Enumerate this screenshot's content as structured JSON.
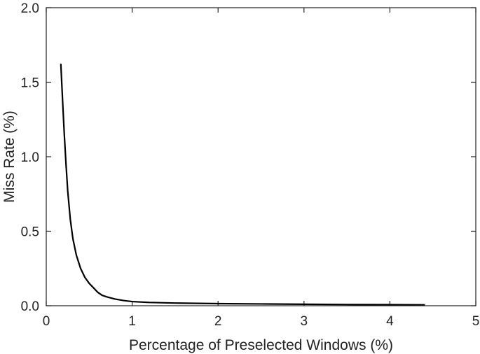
{
  "chart_data": {
    "type": "line",
    "title": "",
    "xlabel": "Percentage of Preselected Windows (%)",
    "ylabel": "Miss Rate (%)",
    "xlim": [
      0,
      5
    ],
    "ylim": [
      0,
      2.0
    ],
    "xticks": [
      0,
      1,
      2,
      3,
      4,
      5
    ],
    "xtick_labels": [
      "0",
      "1",
      "2",
      "3",
      "4",
      "5"
    ],
    "yticks": [
      0,
      0.5,
      1.0,
      1.5,
      2.0
    ],
    "ytick_labels": [
      "0.0",
      "0.5",
      "1.0",
      "1.5",
      "2.0"
    ],
    "grid": false,
    "legend": "none",
    "series": [
      {
        "color": "#000000",
        "x": [
          0.17,
          0.19,
          0.21,
          0.23,
          0.25,
          0.28,
          0.31,
          0.35,
          0.4,
          0.45,
          0.5,
          0.55,
          0.6,
          0.65,
          0.7,
          0.8,
          0.9,
          1.0,
          1.2,
          1.5,
          2.0,
          2.5,
          3.0,
          3.5,
          4.0,
          4.4
        ],
        "y": [
          1.62,
          1.38,
          1.15,
          0.95,
          0.77,
          0.58,
          0.45,
          0.34,
          0.25,
          0.19,
          0.15,
          0.12,
          0.09,
          0.07,
          0.06,
          0.045,
          0.035,
          0.028,
          0.022,
          0.018,
          0.014,
          0.012,
          0.01,
          0.008,
          0.007,
          0.006
        ]
      }
    ]
  }
}
